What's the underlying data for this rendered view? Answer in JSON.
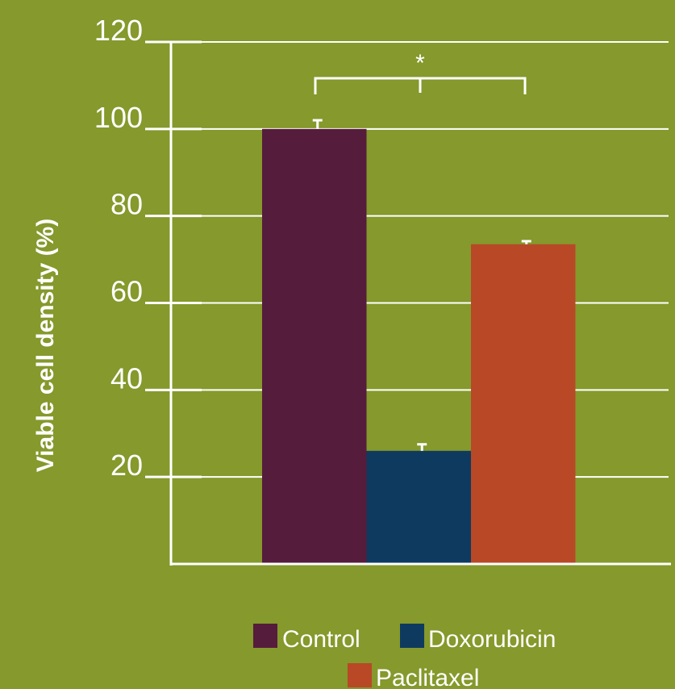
{
  "chart_data": {
    "type": "bar",
    "title": "",
    "xlabel": "",
    "ylabel": "Viable cell density (%)",
    "ylim": [
      0,
      120
    ],
    "yticks": [
      20,
      40,
      60,
      80,
      100,
      120
    ],
    "grid": true,
    "legend_position": "bottom",
    "series": [
      {
        "name": "Control",
        "value": 100,
        "error": 2,
        "color": "#561c3c"
      },
      {
        "name": "Doxorubicin",
        "value": 26,
        "error": 1.5,
        "color": "#0f3a60"
      },
      {
        "name": "Paclitaxel",
        "value": 73.5,
        "error": 0.7,
        "color": "#b94826"
      }
    ],
    "annotations": [
      {
        "text": "*",
        "between": [
          "Control",
          "Paclitaxel"
        ]
      }
    ]
  },
  "colors": {
    "background": "#85992c",
    "axis": "#ffffff",
    "grid": "#ffffff"
  }
}
